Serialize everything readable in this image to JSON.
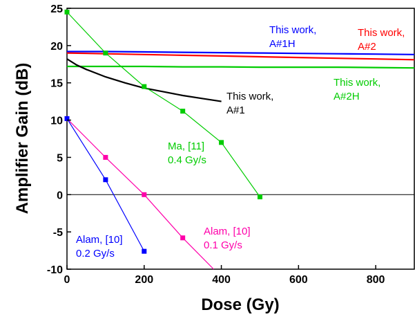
{
  "chart_data": {
    "type": "line",
    "xlabel": "Dose (Gy)",
    "ylabel": "Amplifier Gain (dB)",
    "xlim": [
      0,
      900
    ],
    "ylim": [
      -10,
      25
    ],
    "xticks": [
      0,
      200,
      400,
      600,
      800
    ],
    "yticks": [
      -10,
      -5,
      0,
      5,
      10,
      15,
      20,
      25
    ],
    "reference_line_y": 0,
    "grid": false,
    "series": [
      {
        "id": "a1h",
        "color": "#0000ff",
        "x": [
          0,
          100,
          200,
          300,
          400,
          500,
          600,
          700,
          800,
          900
        ],
        "y": [
          19.2,
          19.2,
          19.15,
          19.1,
          19.05,
          19.0,
          18.95,
          18.9,
          18.85,
          18.8
        ],
        "label_lines": [
          "This work,",
          "A#1H"
        ]
      },
      {
        "id": "a2",
        "color": "#ff0000",
        "x": [
          0,
          100,
          200,
          300,
          400,
          500,
          600,
          700,
          800,
          900
        ],
        "y": [
          19.0,
          18.9,
          18.8,
          18.7,
          18.6,
          18.5,
          18.4,
          18.3,
          18.2,
          18.1
        ],
        "label_lines": [
          "This work,",
          "A#2"
        ]
      },
      {
        "id": "a2h",
        "color": "#00cc00",
        "x": [
          0,
          100,
          200,
          300,
          400,
          500,
          600,
          700,
          800,
          900
        ],
        "y": [
          17.2,
          17.2,
          17.2,
          17.15,
          17.15,
          17.1,
          17.1,
          17.1,
          17.05,
          17.0
        ],
        "label_lines": [
          "This work,",
          "A#2H"
        ]
      },
      {
        "id": "a1",
        "color": "#000000",
        "x": [
          0,
          25,
          50,
          100,
          150,
          200,
          250,
          300,
          350,
          400
        ],
        "y": [
          18.2,
          17.4,
          16.8,
          15.8,
          15.0,
          14.3,
          13.8,
          13.3,
          12.9,
          12.5
        ],
        "label_lines": [
          "This work,",
          "A#1"
        ]
      },
      {
        "id": "ma",
        "color": "#00cc00",
        "markers": true,
        "x": [
          0,
          100,
          200,
          300,
          400,
          500
        ],
        "y": [
          24.5,
          19.0,
          14.5,
          11.2,
          7.0,
          -0.3
        ],
        "label_lines": [
          "Ma, [11]",
          "0.4 Gy/s"
        ]
      },
      {
        "id": "alam01",
        "color": "#ff00aa",
        "markers": true,
        "x": [
          0,
          100,
          200,
          300,
          380
        ],
        "y": [
          10.2,
          5.0,
          0.0,
          -5.8,
          -10.0
        ],
        "marker_count": 4,
        "label_lines": [
          "Alam, [10]",
          "0.1 Gy/s"
        ]
      },
      {
        "id": "alam02",
        "color": "#0000ff",
        "markers": true,
        "x": [
          0,
          100,
          200
        ],
        "y": [
          10.2,
          2.0,
          -7.6
        ],
        "label_lines": [
          "Alam, [10]",
          "0.2 Gy/s"
        ]
      }
    ]
  }
}
